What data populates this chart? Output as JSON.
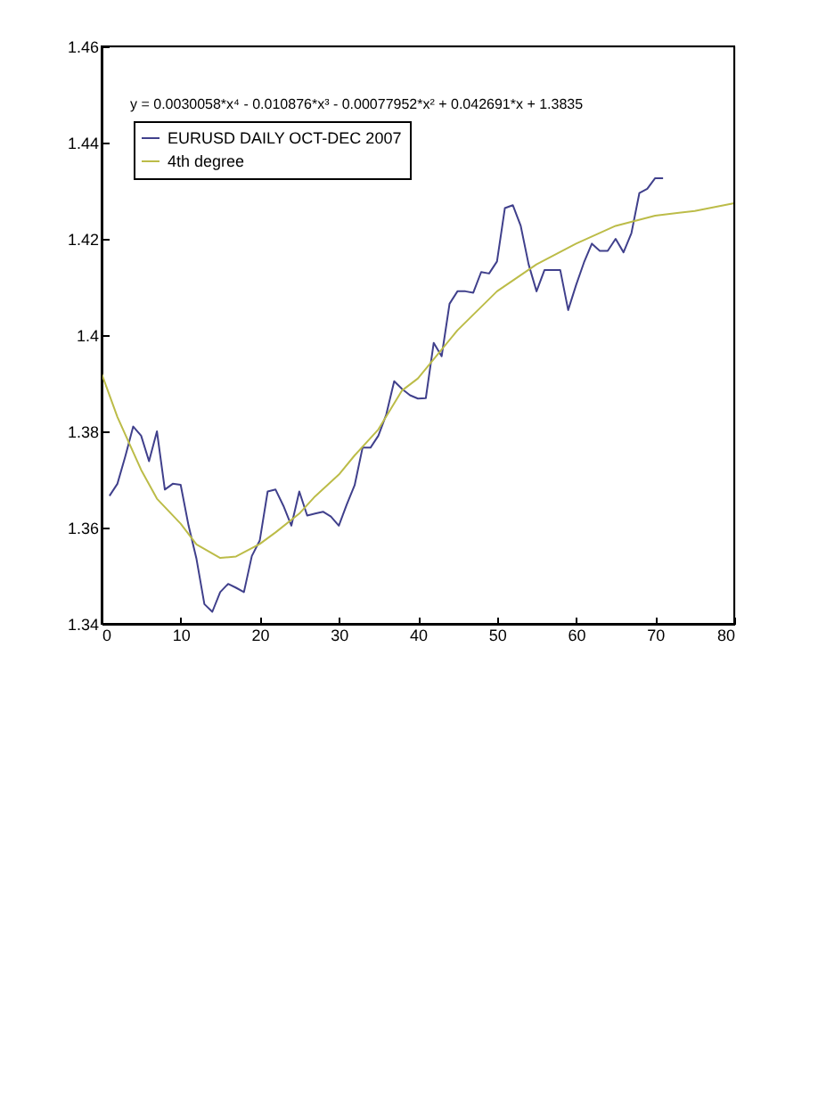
{
  "chart_data": {
    "type": "line",
    "annotations": [
      "y = 0.0030058*x⁴ - 0.010876*x³ - 0.00077952*x² + 0.042691*x + 1.3835"
    ],
    "series": [
      {
        "name": "EURUSD DAILY OCT-DEC 2007",
        "color": "#40408c",
        "x": [
          1,
          2,
          3,
          4,
          5,
          6,
          7,
          8,
          9,
          10,
          11,
          12,
          13,
          14,
          15,
          16,
          17,
          18,
          19,
          20,
          21,
          22,
          23,
          24,
          25,
          26,
          27,
          28,
          29,
          30,
          31,
          32,
          33,
          34,
          35,
          36,
          37,
          38,
          39,
          40,
          41,
          42,
          43,
          44,
          45,
          46,
          47,
          48,
          49,
          50,
          51,
          52,
          53,
          54,
          55,
          56,
          57,
          58,
          59,
          60,
          61,
          62,
          63,
          64,
          65,
          66,
          67,
          68,
          69,
          70,
          71
        ],
        "values": [
          1.3666,
          1.3691,
          1.3748,
          1.381,
          1.3791,
          1.3738,
          1.38,
          1.3679,
          1.3691,
          1.3689,
          1.3604,
          1.3535,
          1.3441,
          1.3425,
          1.3466,
          1.3483,
          1.3475,
          1.3466,
          1.3541,
          1.3573,
          1.3675,
          1.3679,
          1.3645,
          1.3604,
          1.3675,
          1.3625,
          1.3629,
          1.3633,
          1.3623,
          1.3604,
          1.3648,
          1.3688,
          1.3766,
          1.3766,
          1.3791,
          1.3835,
          1.3904,
          1.3888,
          1.3875,
          1.3868,
          1.3869,
          1.3984,
          1.3956,
          1.4065,
          1.4091,
          1.4091,
          1.4088,
          1.4131,
          1.4128,
          1.4153,
          1.4264,
          1.427,
          1.4227,
          1.4147,
          1.4091,
          1.4135,
          1.4135,
          1.4135,
          1.4052,
          1.4104,
          1.4151,
          1.419,
          1.4175,
          1.4175,
          1.42,
          1.4172,
          1.4212,
          1.4295,
          1.4304,
          1.4326,
          1.4326
        ]
      },
      {
        "name": "4th degree",
        "color": "#bcbc48",
        "type": "line",
        "x": [
          0,
          2,
          5,
          7,
          10,
          12,
          15,
          17,
          20,
          22,
          25,
          27,
          30,
          32,
          35,
          38,
          40,
          45,
          50,
          55,
          60,
          65,
          70,
          75,
          80
        ],
        "values": [
          1.392,
          1.383,
          1.372,
          1.366,
          1.3608,
          1.3565,
          1.3537,
          1.354,
          1.3566,
          1.359,
          1.3629,
          1.3665,
          1.371,
          1.375,
          1.3804,
          1.3885,
          1.391,
          1.401,
          1.4091,
          1.4147,
          1.419,
          1.4227,
          1.4248,
          1.4258,
          1.4274
        ]
      }
    ],
    "xlim": [
      0,
      80
    ],
    "xticks": [
      0,
      10,
      20,
      30,
      40,
      50,
      60,
      70,
      80
    ],
    "ylim": [
      1.34,
      1.46
    ],
    "yticks": [
      1.34,
      1.36,
      1.38,
      1.4,
      1.42,
      1.44,
      1.46
    ],
    "grid": false,
    "legend": "top left",
    "marker": "none",
    "line_style": "solid"
  }
}
